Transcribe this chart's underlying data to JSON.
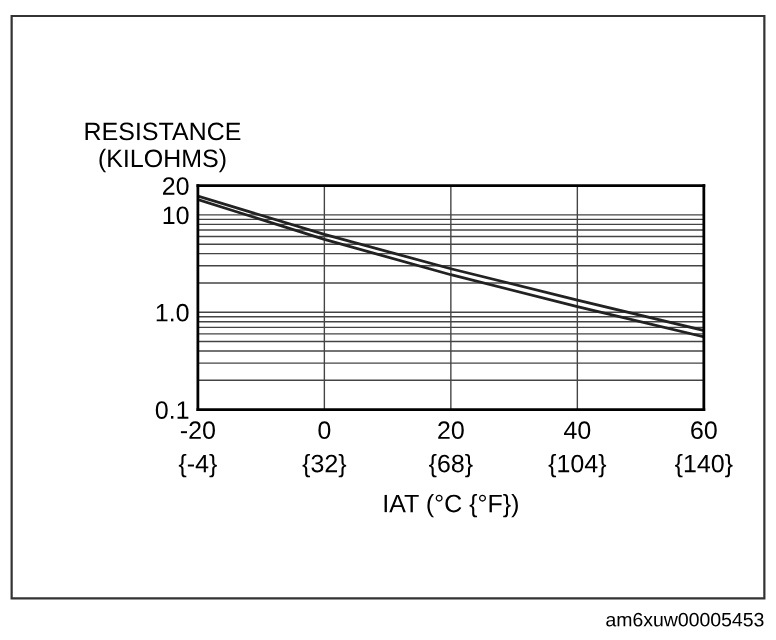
{
  "chart_data": {
    "type": "line",
    "ylabel": "RESISTANCE\n(KILOHMS)",
    "xlabel": "IAT (°C {°F})",
    "log": "y",
    "grid": true,
    "marker": "none",
    "line_style": "solid",
    "x": [
      -20,
      0,
      20,
      40,
      60
    ],
    "series": [
      {
        "color": "#222222",
        "values": [
          15.6,
          6.3,
          2.8,
          1.33,
          0.65
        ]
      },
      {
        "color": "#222222",
        "values": [
          14.4,
          5.6,
          2.43,
          1.14,
          0.56
        ]
      }
    ],
    "xlim": [
      -20,
      60
    ],
    "xticks": [
      -20,
      0,
      20,
      40,
      60
    ],
    "x2lim": [
      -4,
      140
    ],
    "x2ticks": [
      {
        "value": -4,
        "label": "{-4}"
      },
      {
        "value": 32,
        "label": "{32}"
      },
      {
        "value": 68,
        "label": "{68}"
      },
      {
        "value": 104,
        "label": "{104}"
      },
      {
        "value": 140,
        "label": "{140}"
      }
    ],
    "ylim": [
      0.1,
      20
    ],
    "yticks": [
      {
        "value": 0.1,
        "label": "0.1"
      },
      {
        "value": 0.2,
        "label": null
      },
      {
        "value": 0.3,
        "label": null
      },
      {
        "value": 0.4,
        "label": null
      },
      {
        "value": 0.5,
        "label": null
      },
      {
        "value": 0.6,
        "label": null
      },
      {
        "value": 0.7,
        "label": null
      },
      {
        "value": 0.8,
        "label": null
      },
      {
        "value": 0.9,
        "label": null
      },
      {
        "value": 1,
        "label": "1.0"
      },
      {
        "value": 2,
        "label": null
      },
      {
        "value": 3,
        "label": null
      },
      {
        "value": 4,
        "label": null
      },
      {
        "value": 5,
        "label": null
      },
      {
        "value": 6,
        "label": null
      },
      {
        "value": 7,
        "label": null
      },
      {
        "value": 8,
        "label": null
      },
      {
        "value": 9,
        "label": null
      },
      {
        "value": 10,
        "label": "10"
      },
      {
        "value": 20,
        "label": "20"
      }
    ],
    "annotations": [
      "am6xuw00005453"
    ]
  }
}
